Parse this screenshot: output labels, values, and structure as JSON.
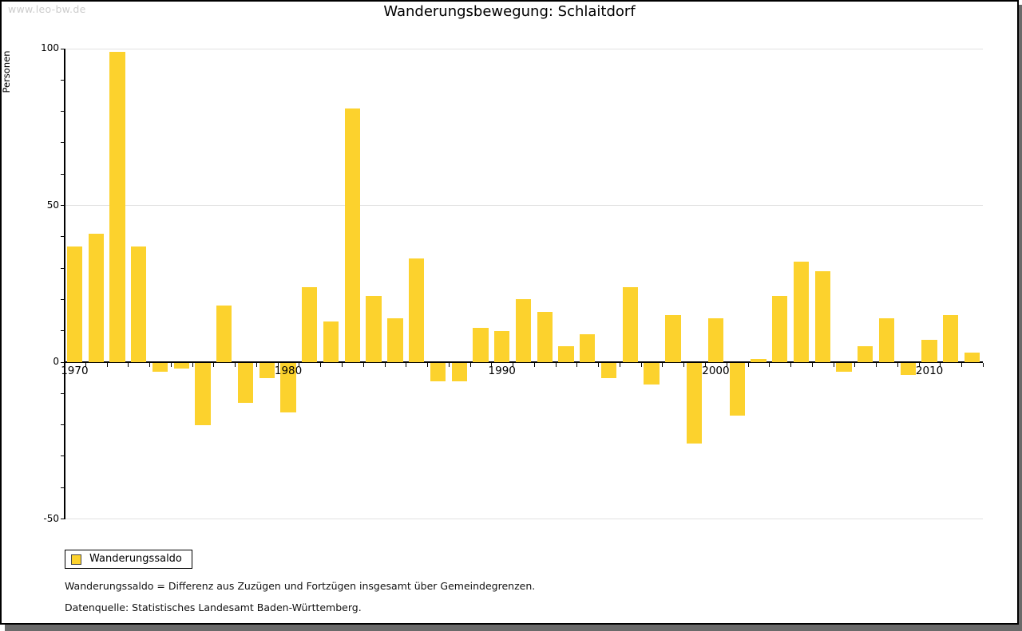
{
  "watermark": "www.leo-bw.de",
  "header": {
    "title": "Wanderungsbewegung: Schlaitdorf"
  },
  "legend": {
    "label": "Wanderungssaldo",
    "position": "bottom-left"
  },
  "footnotes": {
    "definition": "Wanderungssaldo = Differenz aus Zuzügen und Fortzügen insgesamt über Gemeindegrenzen.",
    "source": "Datenquelle: Statistisches Landesamt Baden-Württemberg."
  },
  "colors": {
    "bar": "#FCD22D",
    "grid": "#e2e2e2",
    "axis": "#000000",
    "watermark": "#cccccc",
    "frame_border": "#000000",
    "frame_shadow": "#6a6a6a",
    "legend_swatch_border": "#4a4a4a",
    "background": "#ffffff"
  },
  "chart_data": {
    "type": "bar",
    "title": "Wanderungsbewegung: Schlaitdorf",
    "xlabel": "",
    "ylabel": "Personen",
    "series_name": "Wanderungssaldo",
    "ylim": [
      -50,
      100
    ],
    "y_major_ticks": [
      100,
      50,
      0,
      -50
    ],
    "y_minor_tick_step": 10,
    "grid": "horizontal-major",
    "legend_position": "bottom-left",
    "x_decade_labels": [
      1970,
      1980,
      1990,
      2000,
      2010
    ],
    "years": [
      1970,
      1971,
      1972,
      1973,
      1974,
      1975,
      1976,
      1977,
      1978,
      1979,
      1980,
      1981,
      1982,
      1983,
      1984,
      1985,
      1986,
      1987,
      1988,
      1989,
      1990,
      1991,
      1992,
      1993,
      1994,
      1995,
      1996,
      1997,
      1998,
      1999,
      2000,
      2001,
      2002,
      2003,
      2004,
      2005,
      2006,
      2007,
      2008,
      2009,
      2010,
      2011,
      2012
    ],
    "values": [
      37,
      41,
      99,
      37,
      -3,
      -2,
      -20,
      18,
      -13,
      -5,
      -16,
      24,
      13,
      81,
      21,
      14,
      33,
      -6,
      -6,
      11,
      10,
      20,
      16,
      5,
      9,
      -5,
      24,
      -7,
      15,
      -26,
      14,
      -17,
      1,
      21,
      32,
      29,
      -3,
      5,
      14,
      -4,
      7,
      15,
      3
    ]
  }
}
